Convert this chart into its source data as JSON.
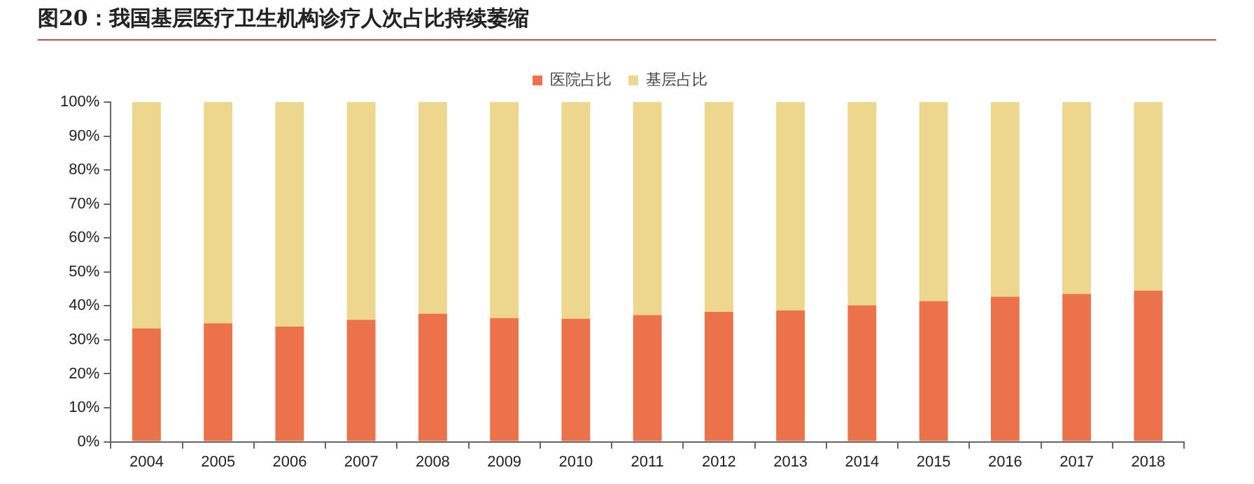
{
  "chart_data": {
    "type": "bar",
    "title": "图20：我国基层医疗卫生机构诊疗人次占比持续萎缩",
    "stacked": true,
    "legend": "top",
    "grid": false,
    "categories": [
      "2004",
      "2005",
      "2006",
      "2007",
      "2008",
      "2009",
      "2010",
      "2011",
      "2012",
      "2013",
      "2014",
      "2015",
      "2016",
      "2017",
      "2018"
    ],
    "series": [
      {
        "name": "医院占比",
        "color": "#ec7249",
        "values": [
          33.4,
          34.9,
          33.9,
          35.9,
          37.7,
          36.4,
          36.2,
          37.3,
          38.2,
          38.7,
          40.2,
          41.4,
          42.7,
          43.5,
          44.5
        ]
      },
      {
        "name": "基层占比",
        "color": "#ecd78c",
        "values": [
          66.6,
          65.1,
          66.1,
          64.1,
          62.3,
          63.6,
          63.8,
          62.7,
          61.8,
          61.3,
          59.8,
          58.6,
          57.3,
          56.5,
          55.5
        ]
      }
    ],
    "ylim": [
      0,
      100
    ],
    "yticks": [
      {
        "value": 0,
        "label": "0%"
      },
      {
        "value": 10,
        "label": "10%"
      },
      {
        "value": 20,
        "label": "20%"
      },
      {
        "value": 30,
        "label": "30%"
      },
      {
        "value": 40,
        "label": "40%"
      },
      {
        "value": 50,
        "label": "50%"
      },
      {
        "value": 60,
        "label": "60%"
      },
      {
        "value": 70,
        "label": "70%"
      },
      {
        "value": 80,
        "label": "80%"
      },
      {
        "value": 90,
        "label": "90%"
      },
      {
        "value": 100,
        "label": "100%"
      }
    ]
  }
}
